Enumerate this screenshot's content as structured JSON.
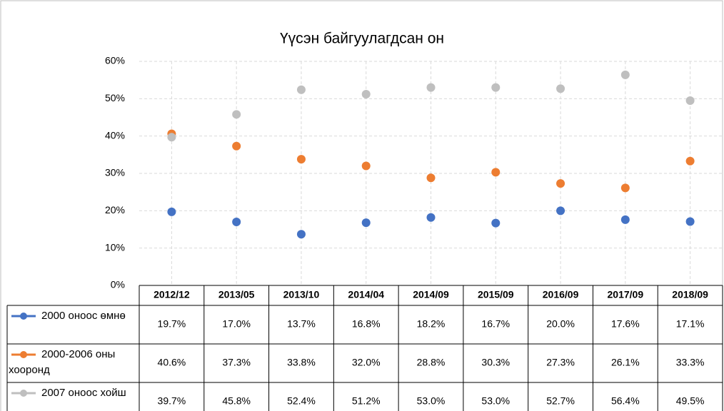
{
  "chart_data": {
    "type": "line",
    "title": "Үүсэн байгуулагдсан он",
    "categories": [
      "2012/12",
      "2013/05",
      "2013/10",
      "2014/04",
      "2014/09",
      "2015/09",
      "2016/09",
      "2017/09",
      "2018/09"
    ],
    "series": [
      {
        "name": "2000 оноос өмнө",
        "color": "#4472c4",
        "values": [
          19.7,
          17.0,
          13.7,
          16.8,
          18.2,
          16.7,
          20.0,
          17.6,
          17.1
        ],
        "value_labels": [
          "19.7%",
          "17.0%",
          "13.7%",
          "16.8%",
          "18.2%",
          "16.7%",
          "20.0%",
          "17.6%",
          "17.1%"
        ]
      },
      {
        "name": "2000-2006 оны хооронд",
        "color": "#ed7d31",
        "values": [
          40.6,
          37.3,
          33.8,
          32.0,
          28.8,
          30.3,
          27.3,
          26.1,
          33.3
        ],
        "value_labels": [
          "40.6%",
          "37.3%",
          "33.8%",
          "32.0%",
          "28.8%",
          "30.3%",
          "27.3%",
          "26.1%",
          "33.3%"
        ]
      },
      {
        "name": "2007 оноос хойш",
        "color": "#bfbfbf",
        "values": [
          39.7,
          45.8,
          52.4,
          51.2,
          53.0,
          53.0,
          52.7,
          56.4,
          49.5
        ],
        "value_labels": [
          "39.7%",
          "45.8%",
          "52.4%",
          "51.2%",
          "53.0%",
          "53.0%",
          "52.7%",
          "56.4%",
          "49.5%"
        ]
      }
    ],
    "ylim": [
      0,
      60
    ],
    "yticks": [
      {
        "value": 0,
        "label": "0%"
      },
      {
        "value": 10,
        "label": "10%"
      },
      {
        "value": 20,
        "label": "20%"
      },
      {
        "value": 30,
        "label": "30%"
      },
      {
        "value": 40,
        "label": "40%"
      },
      {
        "value": 50,
        "label": "50%"
      },
      {
        "value": 60,
        "label": "60%"
      }
    ],
    "grid": true
  }
}
